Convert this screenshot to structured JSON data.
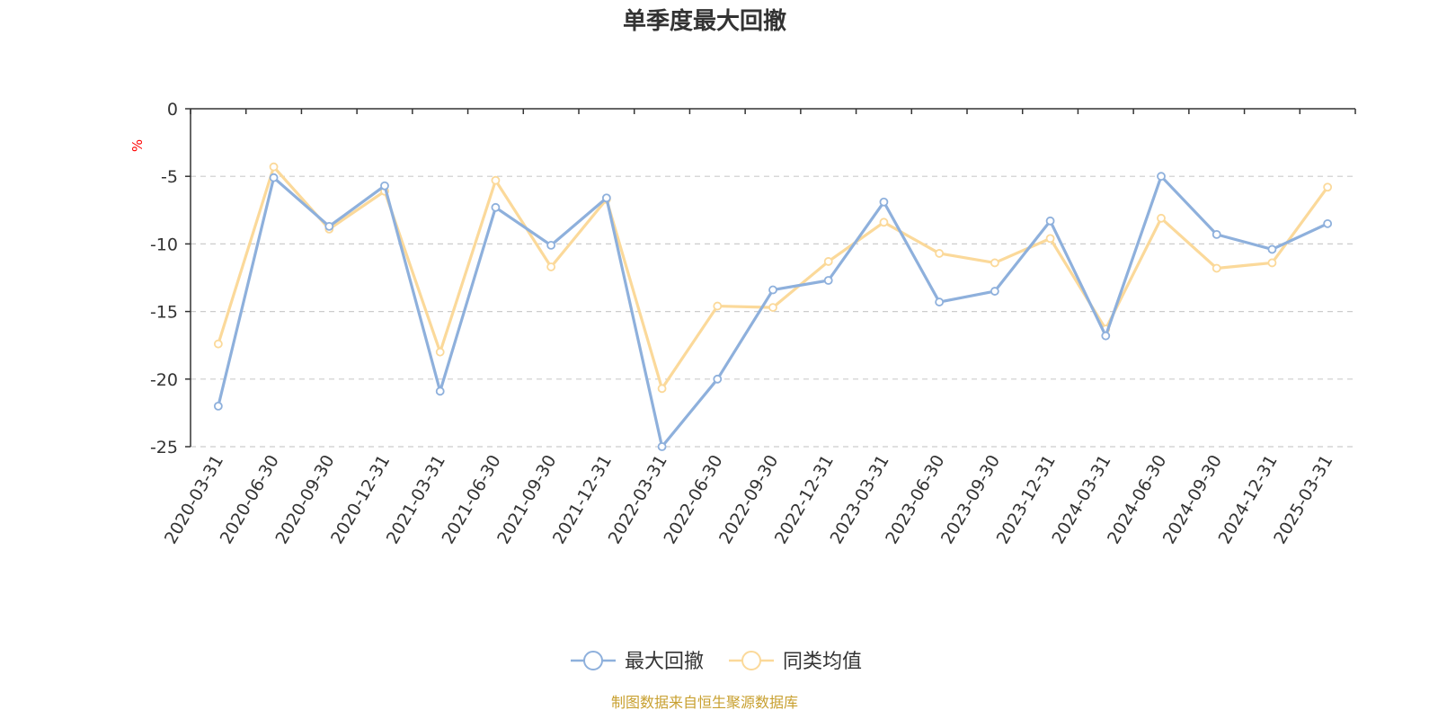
{
  "chart_data": {
    "type": "line",
    "title": "单季度最大回撤",
    "y_unit": "%",
    "ylim": [
      -25,
      0
    ],
    "y_ticks": [
      0,
      -5,
      -10,
      -15,
      -20,
      -25
    ],
    "grid": true,
    "legend_position": "bottom-center",
    "categories": [
      "2020-03-31",
      "2020-06-30",
      "2020-09-30",
      "2020-12-31",
      "2021-03-31",
      "2021-06-30",
      "2021-09-30",
      "2021-12-31",
      "2022-03-31",
      "2022-06-30",
      "2022-09-30",
      "2022-12-31",
      "2023-03-31",
      "2023-06-30",
      "2023-09-30",
      "2023-12-31",
      "2024-03-31",
      "2024-06-30",
      "2024-09-30",
      "2024-12-31",
      "2025-03-31"
    ],
    "series": [
      {
        "name": "最大回撤",
        "color": "#8eb0dc",
        "values": [
          -22.0,
          -5.1,
          -8.7,
          -5.7,
          -20.9,
          -7.3,
          -10.1,
          -6.6,
          -25.0,
          -20.0,
          -13.4,
          -12.7,
          -6.9,
          -14.3,
          -13.5,
          -8.3,
          -16.8,
          -5.0,
          -9.3,
          -10.4,
          -8.5
        ]
      },
      {
        "name": "同类均值",
        "color": "#fbd99a",
        "values": [
          -17.4,
          -4.3,
          -8.9,
          -6.1,
          -18.0,
          -5.3,
          -11.7,
          -6.7,
          -20.7,
          -14.6,
          -14.7,
          -11.3,
          -8.4,
          -10.7,
          -11.4,
          -9.6,
          -16.3,
          -8.1,
          -11.8,
          -11.4,
          -5.8
        ]
      }
    ]
  },
  "source_text": "制图数据来自恒生聚源数据库",
  "colors": {
    "unit": "#ff0000",
    "source": "#c8a030",
    "axis": "#333333",
    "grid": "#cccccc"
  }
}
